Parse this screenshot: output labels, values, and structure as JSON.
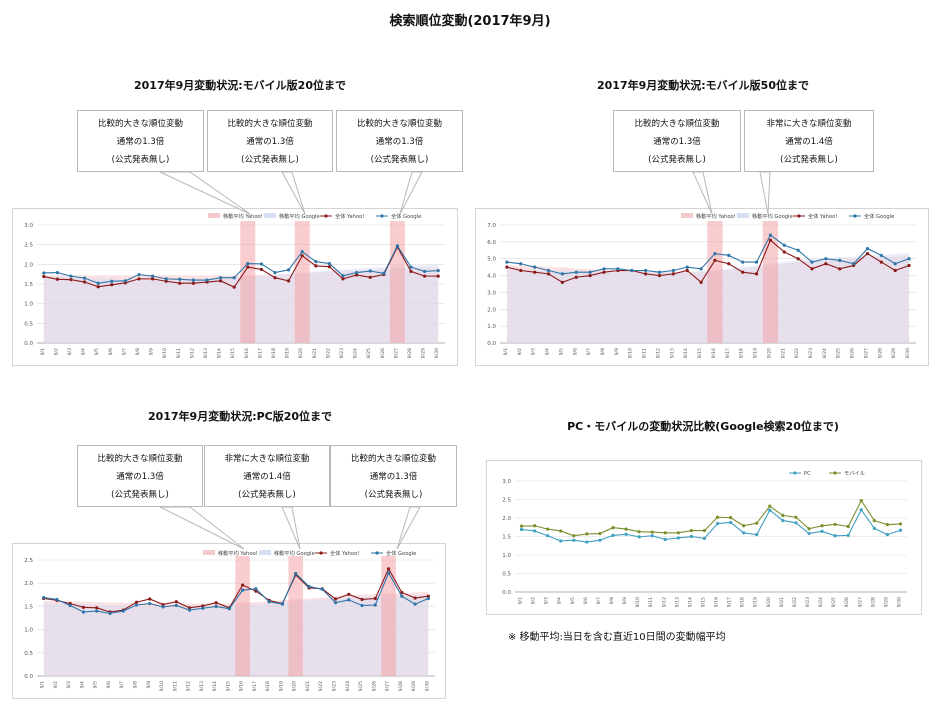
{
  "page": {
    "title": "検索順位変動(2017年9月)",
    "note": "※ 移動平均:当日を含む直近10日間の変動幅平均"
  },
  "colors": {
    "yahoo": "#8b1a1a",
    "google": "#2e75a8",
    "ma_yahoo": "#f5c9cc",
    "ma_google": "#d7dff2",
    "highlight": "#f4a3a8",
    "pc": "#3f9fc2",
    "mobile": "#7b8f2c"
  },
  "callout_text": {
    "moderate": [
      "比較的大きな順位変動",
      "通常の1.3倍",
      "(公式発表無し)"
    ],
    "large": [
      "非常に大きな順位変動",
      "通常の1.4倍",
      "(公式発表無し)"
    ]
  },
  "chart_data": [
    {
      "id": "m20",
      "type": "line",
      "title": "2017年9月変動状況:モバイル版20位まで",
      "legend": [
        "移動平均 Yahoo!",
        "移動平均 Google",
        "全体 Yahoo!",
        "全体 Google"
      ],
      "x": [
        "9/1",
        "9/2",
        "9/3",
        "9/4",
        "9/5",
        "9/6",
        "9/7",
        "9/8",
        "9/9",
        "9/10",
        "9/11",
        "9/12",
        "9/13",
        "9/14",
        "9/15",
        "9/16",
        "9/17",
        "9/18",
        "9/19",
        "9/20",
        "9/21",
        "9/22",
        "9/23",
        "9/24",
        "9/25",
        "9/26",
        "9/27",
        "9/28",
        "9/29",
        "9/30"
      ],
      "ylim": [
        0,
        3.0
      ],
      "yticks": [
        "0.0",
        "0.5",
        "1.0",
        "1.5",
        "2.0",
        "2.5",
        "3.0"
      ],
      "highlights": [
        "9/16",
        "9/20",
        "9/27"
      ],
      "series": [
        {
          "name": "全体 Yahoo!",
          "values": [
            1.69,
            1.62,
            1.61,
            1.55,
            1.43,
            1.48,
            1.53,
            1.63,
            1.63,
            1.57,
            1.52,
            1.52,
            1.55,
            1.58,
            1.42,
            1.93,
            1.87,
            1.66,
            1.58,
            2.22,
            1.96,
            1.94,
            1.63,
            1.73,
            1.67,
            1.74,
            2.44,
            1.82,
            1.7,
            1.7
          ]
        },
        {
          "name": "全体 Google",
          "values": [
            1.78,
            1.79,
            1.7,
            1.65,
            1.52,
            1.57,
            1.58,
            1.74,
            1.7,
            1.63,
            1.62,
            1.6,
            1.6,
            1.66,
            1.66,
            2.02,
            2.01,
            1.79,
            1.86,
            2.32,
            2.07,
            2.02,
            1.71,
            1.79,
            1.83,
            1.77,
            2.47,
            1.93,
            1.82,
            1.84
          ]
        },
        {
          "name": "移動平均 Yahoo!",
          "values": [
            1.72,
            1.72,
            1.72,
            1.72,
            1.72,
            1.72,
            1.72,
            1.72,
            1.72,
            1.72,
            1.72,
            1.72,
            1.72,
            1.72,
            1.72,
            1.72,
            1.73,
            1.74,
            1.75,
            1.77,
            1.79,
            1.81,
            1.82,
            1.84,
            1.86,
            1.87,
            1.88,
            1.9,
            1.91,
            1.92
          ]
        },
        {
          "name": "移動平均 Google",
          "values": [
            1.7,
            1.68,
            1.67,
            1.65,
            1.63,
            1.62,
            1.61,
            1.61,
            1.6,
            1.6,
            1.6,
            1.6,
            1.61,
            1.62,
            1.64,
            1.67,
            1.7,
            1.73,
            1.76,
            1.79,
            1.82,
            1.85,
            1.87,
            1.89,
            1.91,
            1.93,
            1.95,
            1.96,
            1.97,
            1.98
          ]
        }
      ]
    },
    {
      "id": "m50",
      "type": "line",
      "title": "2017年9月変動状況:モバイル版50位まで",
      "legend": [
        "移動平均 Yahoo!",
        "移動平均 Google",
        "全体 Yahoo!",
        "全体 Google"
      ],
      "x": [
        "9/1",
        "9/2",
        "9/3",
        "9/4",
        "9/5",
        "9/6",
        "9/7",
        "9/8",
        "9/9",
        "9/10",
        "9/11",
        "9/12",
        "9/13",
        "9/14",
        "9/15",
        "9/16",
        "9/17",
        "9/18",
        "9/19",
        "9/20",
        "9/21",
        "9/22",
        "9/23",
        "9/24",
        "9/25",
        "9/26",
        "9/27",
        "9/28",
        "9/29",
        "9/30"
      ],
      "ylim": [
        0,
        7.0
      ],
      "yticks": [
        "0.0",
        "1.0",
        "2.0",
        "3.0",
        "4.0",
        "5.0",
        "6.0",
        "7.0"
      ],
      "highlights": [
        "9/16",
        "9/20"
      ],
      "series": [
        {
          "name": "全体 Yahoo!",
          "values": [
            4.5,
            4.3,
            4.2,
            4.1,
            3.6,
            3.9,
            4.0,
            4.2,
            4.3,
            4.3,
            4.1,
            4.0,
            4.1,
            4.3,
            3.6,
            4.9,
            4.7,
            4.2,
            4.1,
            6.1,
            5.4,
            5.0,
            4.4,
            4.7,
            4.4,
            4.6,
            5.3,
            4.8,
            4.3,
            4.6
          ]
        },
        {
          "name": "全体 Google",
          "values": [
            4.8,
            4.7,
            4.5,
            4.3,
            4.1,
            4.2,
            4.2,
            4.4,
            4.4,
            4.3,
            4.3,
            4.2,
            4.3,
            4.5,
            4.4,
            5.3,
            5.2,
            4.8,
            4.8,
            6.4,
            5.8,
            5.5,
            4.8,
            5.0,
            4.9,
            4.7,
            5.6,
            5.2,
            4.7,
            5.0
          ]
        },
        {
          "name": "移動平均 Yahoo!",
          "values": [
            4.6,
            4.6,
            4.6,
            4.5,
            4.5,
            4.4,
            4.4,
            4.3,
            4.3,
            4.3,
            4.2,
            4.2,
            4.2,
            4.2,
            4.2,
            4.3,
            4.3,
            4.4,
            4.5,
            4.6,
            4.7,
            4.8,
            4.9,
            4.9,
            5.0,
            5.0,
            5.1,
            5.1,
            5.1,
            5.2
          ]
        },
        {
          "name": "移動平均 Google",
          "values": [
            4.4,
            4.4,
            4.3,
            4.3,
            4.3,
            4.3,
            4.2,
            4.2,
            4.2,
            4.2,
            4.2,
            4.2,
            4.2,
            4.2,
            4.3,
            4.3,
            4.4,
            4.5,
            4.6,
            4.7,
            4.8,
            4.9,
            5.0,
            5.0,
            5.1,
            5.1,
            5.2,
            5.2,
            5.3,
            5.3
          ]
        }
      ]
    },
    {
      "id": "pc20",
      "type": "line",
      "title": "2017年9月変動状況:PC版20位まで",
      "legend": [
        "移動平均 Yahoo!",
        "移動平均 Google",
        "全体 Yahoo!",
        "全体 Google"
      ],
      "x": [
        "9/1",
        "9/2",
        "9/3",
        "9/4",
        "9/5",
        "9/6",
        "9/7",
        "9/8",
        "9/9",
        "9/10",
        "9/11",
        "9/12",
        "9/13",
        "9/14",
        "9/15",
        "9/16",
        "9/17",
        "9/18",
        "9/19",
        "9/20",
        "9/21",
        "9/22",
        "9/23",
        "9/24",
        "9/25",
        "9/26",
        "9/27",
        "9/28",
        "9/29",
        "9/30"
      ],
      "ylim": [
        0,
        2.5
      ],
      "yticks": [
        "0.0",
        "0.5",
        "1.0",
        "1.5",
        "2.0",
        "2.5"
      ],
      "highlights": [
        "9/16",
        "9/20",
        "9/27"
      ],
      "series": [
        {
          "name": "全体 Yahoo!",
          "values": [
            1.67,
            1.63,
            1.56,
            1.48,
            1.47,
            1.38,
            1.42,
            1.59,
            1.66,
            1.54,
            1.6,
            1.47,
            1.51,
            1.58,
            1.47,
            1.96,
            1.83,
            1.63,
            1.56,
            2.18,
            1.9,
            1.88,
            1.66,
            1.76,
            1.65,
            1.67,
            2.31,
            1.8,
            1.68,
            1.72
          ]
        },
        {
          "name": "全体 Google",
          "values": [
            1.69,
            1.65,
            1.52,
            1.38,
            1.4,
            1.35,
            1.4,
            1.53,
            1.56,
            1.49,
            1.52,
            1.42,
            1.46,
            1.5,
            1.45,
            1.85,
            1.88,
            1.6,
            1.55,
            2.21,
            1.93,
            1.87,
            1.58,
            1.64,
            1.52,
            1.53,
            2.22,
            1.72,
            1.55,
            1.67
          ]
        },
        {
          "name": "移動平均 Yahoo!",
          "values": [
            1.62,
            1.62,
            1.61,
            1.6,
            1.59,
            1.58,
            1.58,
            1.57,
            1.57,
            1.56,
            1.56,
            1.56,
            1.56,
            1.56,
            1.57,
            1.58,
            1.59,
            1.61,
            1.63,
            1.65,
            1.67,
            1.69,
            1.71,
            1.73,
            1.75,
            1.76,
            1.78,
            1.79,
            1.8,
            1.81
          ]
        },
        {
          "name": "移動平均 Google",
          "values": [
            1.58,
            1.57,
            1.56,
            1.55,
            1.53,
            1.52,
            1.51,
            1.5,
            1.49,
            1.49,
            1.48,
            1.48,
            1.48,
            1.49,
            1.5,
            1.52,
            1.54,
            1.56,
            1.58,
            1.61,
            1.63,
            1.65,
            1.67,
            1.69,
            1.7,
            1.71,
            1.72,
            1.73,
            1.74,
            1.75
          ]
        }
      ]
    },
    {
      "id": "cmp",
      "type": "line",
      "title": "PC・モバイルの変動状況比較(Google検索20位まで)",
      "legend": [
        "PC",
        "モバイル"
      ],
      "x": [
        "9/1",
        "9/2",
        "9/3",
        "9/4",
        "9/5",
        "9/6",
        "9/7",
        "9/8",
        "9/9",
        "9/10",
        "9/11",
        "9/12",
        "9/13",
        "9/14",
        "9/15",
        "9/16",
        "9/17",
        "9/18",
        "9/19",
        "9/20",
        "9/21",
        "9/22",
        "9/23",
        "9/24",
        "9/25",
        "9/26",
        "9/27",
        "9/28",
        "9/29",
        "9/30"
      ],
      "ylim": [
        0,
        3.0
      ],
      "yticks": [
        "0.0",
        "0.5",
        "1.0",
        "1.5",
        "2.0",
        "2.5",
        "3.0"
      ],
      "series": [
        {
          "name": "PC",
          "values": [
            1.69,
            1.65,
            1.52,
            1.38,
            1.4,
            1.35,
            1.4,
            1.53,
            1.56,
            1.49,
            1.52,
            1.42,
            1.46,
            1.5,
            1.45,
            1.85,
            1.88,
            1.6,
            1.55,
            2.21,
            1.93,
            1.87,
            1.58,
            1.64,
            1.52,
            1.53,
            2.22,
            1.72,
            1.55,
            1.67
          ]
        },
        {
          "name": "モバイル",
          "values": [
            1.78,
            1.79,
            1.7,
            1.65,
            1.52,
            1.57,
            1.58,
            1.74,
            1.7,
            1.63,
            1.62,
            1.6,
            1.6,
            1.66,
            1.66,
            2.02,
            2.01,
            1.79,
            1.86,
            2.32,
            2.07,
            2.02,
            1.71,
            1.79,
            1.83,
            1.77,
            2.47,
            1.93,
            1.82,
            1.84
          ]
        }
      ]
    }
  ]
}
